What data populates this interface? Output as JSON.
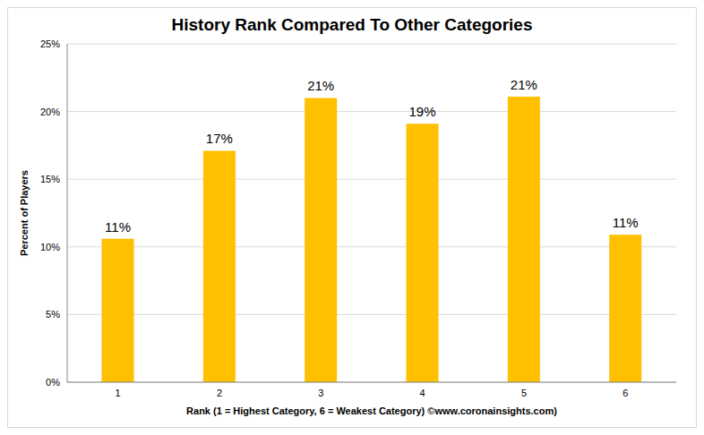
{
  "chart_data": {
    "type": "bar",
    "title": "History Rank Compared To Other Categories",
    "xlabel": "Rank (1 = Highest Category, 6 = Weakest Category) ©www.coronainsights.com)",
    "ylabel": "Percent of Players",
    "categories": [
      "1",
      "2",
      "3",
      "4",
      "5",
      "6"
    ],
    "values": [
      10.6,
      17.1,
      21.0,
      19.1,
      21.1,
      10.9
    ],
    "value_labels": [
      "11%",
      "17%",
      "21%",
      "19%",
      "21%",
      "11%"
    ],
    "data_labels": true,
    "color": "#ffc000",
    "ylim": [
      0,
      25
    ],
    "yticks": [
      {
        "value": 0,
        "label": "0%"
      },
      {
        "value": 5,
        "label": "5%"
      },
      {
        "value": 10,
        "label": "10%"
      },
      {
        "value": 15,
        "label": "15%"
      },
      {
        "value": 20,
        "label": "20%"
      },
      {
        "value": 25,
        "label": "25%"
      }
    ],
    "grid": true
  }
}
